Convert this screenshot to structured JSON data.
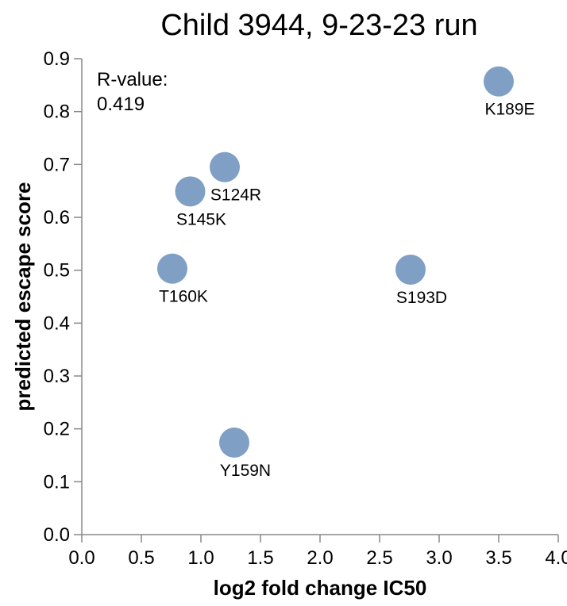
{
  "chart_data": {
    "type": "scatter",
    "title": "Child 3944, 9-23-23 run",
    "xlabel": "log2 fold change IC50",
    "ylabel": "predicted escape score",
    "xlim": [
      0.0,
      4.0
    ],
    "ylim": [
      0.0,
      0.9
    ],
    "xticks": [
      "0.0",
      "0.5",
      "1.0",
      "1.5",
      "2.0",
      "2.5",
      "3.0",
      "3.5",
      "4.0"
    ],
    "yticks": [
      "0.0",
      "0.1",
      "0.2",
      "0.3",
      "0.4",
      "0.5",
      "0.6",
      "0.7",
      "0.8",
      "0.9"
    ],
    "grid": false,
    "point_color": "#7f9fc5",
    "annotation": {
      "line1": "R-value:",
      "line2": "0.419"
    },
    "points": [
      {
        "label": "K189E",
        "x": 3.5,
        "y": 0.857
      },
      {
        "label": "S124R",
        "x": 1.2,
        "y": 0.695
      },
      {
        "label": "S145K",
        "x": 0.91,
        "y": 0.649
      },
      {
        "label": "T160K",
        "x": 0.76,
        "y": 0.503
      },
      {
        "label": "S193D",
        "x": 2.76,
        "y": 0.501
      },
      {
        "label": "Y159N",
        "x": 1.28,
        "y": 0.174
      }
    ]
  }
}
